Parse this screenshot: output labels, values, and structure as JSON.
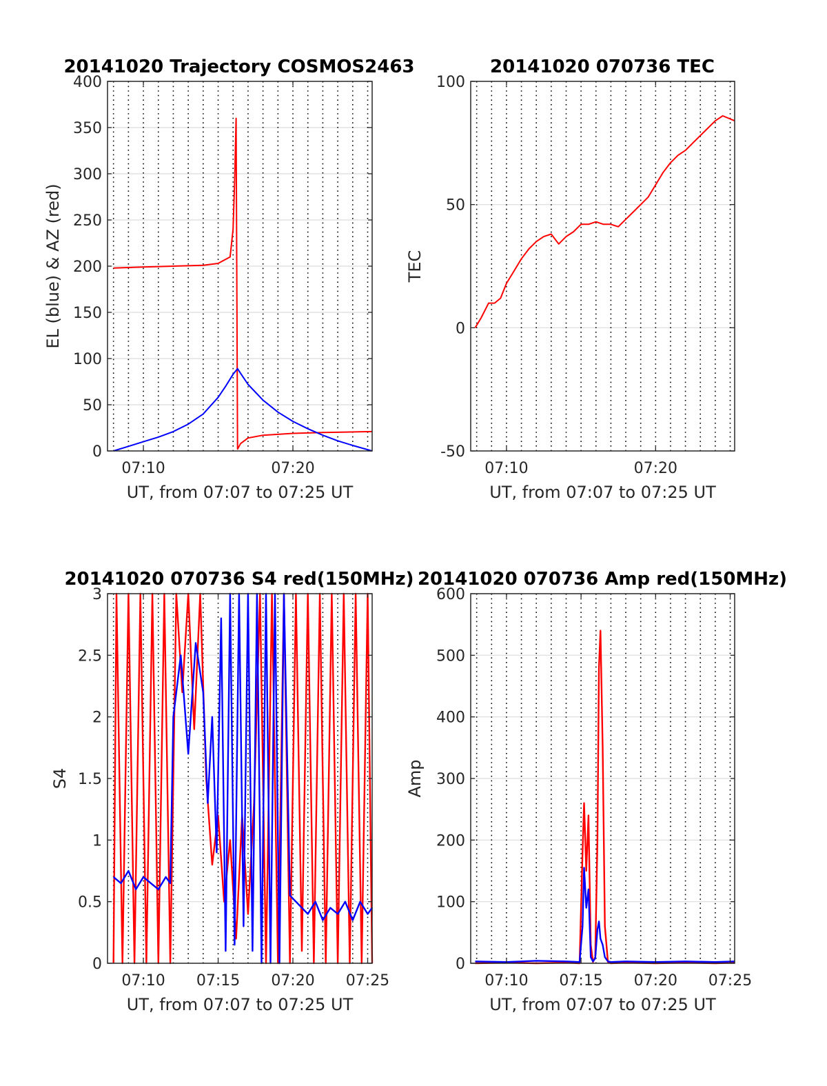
{
  "chart_data": [
    {
      "type": "line",
      "title": "20141020 Trajectory COSMOS2463",
      "xlabel": "UT, from 07:07 to 07:25 UT",
      "ylabel": "EL (blue) & AZ (red)",
      "xlim": [
        7.6,
        25.3
      ],
      "ylim": [
        0,
        400
      ],
      "xticks": [
        {
          "v": 10,
          "label": "07:10"
        },
        {
          "v": 20,
          "label": "07:20"
        }
      ],
      "yticks": [
        0,
        50,
        100,
        150,
        200,
        250,
        300,
        350,
        400
      ],
      "grid": true,
      "series": [
        {
          "color": "#ff0000",
          "x": [
            8,
            10,
            12,
            14,
            15,
            15.8,
            16,
            16.1,
            16.2,
            16.3,
            16.5,
            17,
            18,
            20,
            22,
            25.3
          ],
          "y": [
            198,
            199,
            200,
            201,
            203,
            210,
            240,
            290,
            360,
            2,
            8,
            14,
            17,
            19,
            20,
            21
          ]
        },
        {
          "color": "#0000ff",
          "x": [
            8,
            9,
            10,
            11,
            12,
            13,
            14,
            15,
            15.5,
            16,
            16.3,
            16.5,
            17,
            18,
            19,
            20,
            21,
            22,
            23,
            24,
            25.3
          ],
          "y": [
            0,
            5,
            10,
            15,
            21,
            29,
            40,
            58,
            70,
            83,
            89,
            84,
            72,
            55,
            42,
            32,
            24,
            17,
            11,
            6,
            0
          ]
        }
      ]
    },
    {
      "type": "line",
      "title": "20141020 070736 TEC",
      "xlabel": "UT, from 07:07 to 07:25 UT",
      "ylabel": "TEC",
      "xlim": [
        7.6,
        25.3
      ],
      "ylim": [
        -50,
        100
      ],
      "xticks": [
        {
          "v": 10,
          "label": "07:10"
        },
        {
          "v": 20,
          "label": "07:20"
        }
      ],
      "yticks": [
        -50,
        0,
        50,
        100
      ],
      "grid": true,
      "series": [
        {
          "color": "#ff0000",
          "x": [
            7.9,
            8.3,
            8.8,
            9.2,
            9.6,
            10,
            10.5,
            11,
            11.5,
            12,
            12.5,
            13,
            13.5,
            14,
            14.5,
            15,
            15.5,
            16,
            16.5,
            17,
            17.5,
            18,
            18.5,
            19,
            19.5,
            20,
            20.5,
            21,
            21.5,
            22,
            22.5,
            23,
            23.5,
            24,
            24.5,
            25.3
          ],
          "y": [
            0,
            4,
            10,
            10,
            12,
            18,
            23,
            28,
            32,
            35,
            37,
            38,
            34,
            37,
            39,
            42,
            42,
            43,
            42,
            42,
            41,
            44,
            47,
            50,
            53,
            58,
            63,
            67,
            70,
            72,
            75,
            78,
            81,
            84,
            86,
            84
          ]
        }
      ]
    },
    {
      "type": "line",
      "title": "20141020 070736 S4 red(150MHz)",
      "xlabel": "UT, from 07:07 to 07:25 UT",
      "ylabel": "S4",
      "xlim": [
        7.6,
        25.3
      ],
      "ylim": [
        0,
        3
      ],
      "xticks": [
        {
          "v": 10,
          "label": "07:10"
        },
        {
          "v": 15,
          "label": "07:15"
        },
        {
          "v": 20,
          "label": "07:20"
        },
        {
          "v": 25,
          "label": "07:25"
        }
      ],
      "yticks": [
        0,
        0.5,
        1,
        1.5,
        2,
        2.5,
        3
      ],
      "grid": true,
      "series": [
        {
          "color": "#ff0000",
          "x": [
            8,
            8.2,
            8.6,
            9,
            9.4,
            9.8,
            10.2,
            10.6,
            11,
            11.4,
            11.8,
            12.2,
            12.6,
            13,
            13.4,
            13.8,
            14.2,
            14.6,
            15,
            15.4,
            15.8,
            16.2,
            16.6,
            17,
            17.4,
            17.8,
            18.2,
            18.6,
            19,
            19.4,
            19.8,
            20.2,
            20.6,
            21,
            21.4,
            21.8,
            22.2,
            22.6,
            23,
            23.4,
            23.8,
            24.2,
            24.6,
            25,
            25.3
          ],
          "y": [
            0,
            3,
            0,
            3,
            0,
            3,
            0,
            3,
            0,
            3,
            0,
            3,
            2.2,
            3,
            1.9,
            3,
            1.5,
            0.8,
            1.2,
            0.5,
            1.0,
            0.2,
            1.2,
            0.4,
            1.3,
            3,
            0,
            3,
            0,
            3,
            0,
            3,
            0.1,
            3,
            0,
            3,
            0,
            3,
            0,
            3,
            0,
            3,
            0,
            3,
            0
          ]
        },
        {
          "color": "#0000ff",
          "x": [
            8,
            8.5,
            9,
            9.5,
            10,
            10.5,
            11,
            11.5,
            11.8,
            12,
            12.5,
            13,
            13.5,
            14,
            14.3,
            14.6,
            14.9,
            15.2,
            15.5,
            15.8,
            16.1,
            16.4,
            16.7,
            17,
            17.3,
            17.6,
            17.9,
            18.2,
            18.5,
            18.8,
            19.1,
            19.4,
            19.8,
            20.2,
            20.6,
            21,
            21.5,
            22,
            22.5,
            23,
            23.5,
            24,
            24.5,
            25,
            25.3
          ],
          "y": [
            0.7,
            0.65,
            0.75,
            0.6,
            0.7,
            0.65,
            0.6,
            0.7,
            0.65,
            2.0,
            2.5,
            1.7,
            2.6,
            2.2,
            1.3,
            2.0,
            0.9,
            2.8,
            0.1,
            3,
            0.15,
            3,
            0.3,
            3,
            0.1,
            3,
            0,
            3,
            0,
            3,
            0,
            3,
            0.55,
            0.5,
            0.45,
            0.4,
            0.5,
            0.35,
            0.45,
            0.4,
            0.5,
            0.35,
            0.5,
            0.4,
            0.45
          ]
        }
      ]
    },
    {
      "type": "line",
      "title": "20141020 070736 Amp red(150MHz)",
      "xlabel": "UT, from 07:07 to 07:25 UT",
      "ylabel": "Amp",
      "xlim": [
        7.6,
        25.3
      ],
      "ylim": [
        0,
        600
      ],
      "xticks": [
        {
          "v": 10,
          "label": "07:10"
        },
        {
          "v": 15,
          "label": "07:15"
        },
        {
          "v": 20,
          "label": "07:20"
        },
        {
          "v": 25,
          "label": "07:25"
        }
      ],
      "yticks": [
        0,
        100,
        200,
        300,
        400,
        500,
        600
      ],
      "grid": true,
      "series": [
        {
          "color": "#ff0000",
          "x": [
            7.9,
            10,
            12,
            14,
            14.9,
            15.1,
            15.2,
            15.35,
            15.5,
            15.65,
            15.8,
            15.95,
            16.1,
            16.2,
            16.3,
            16.45,
            16.6,
            16.8,
            17,
            18,
            20,
            22,
            24,
            25.3
          ],
          "y": [
            0,
            1,
            0,
            1,
            0,
            180,
            260,
            150,
            240,
            30,
            2,
            10,
            200,
            480,
            540,
            350,
            60,
            2,
            0,
            1,
            0,
            1,
            0,
            1
          ]
        },
        {
          "color": "#0000ff",
          "x": [
            7.9,
            10,
            12,
            14,
            14.9,
            15.1,
            15.2,
            15.35,
            15.5,
            15.65,
            15.8,
            15.95,
            16.1,
            16.2,
            16.3,
            16.45,
            16.6,
            16.8,
            17,
            18,
            20,
            22,
            24,
            25.3
          ],
          "y": [
            3,
            2,
            4,
            3,
            2,
            60,
            155,
            90,
            120,
            10,
            3,
            8,
            55,
            68,
            40,
            30,
            10,
            3,
            2,
            3,
            2,
            3,
            2,
            3
          ]
        }
      ]
    }
  ]
}
